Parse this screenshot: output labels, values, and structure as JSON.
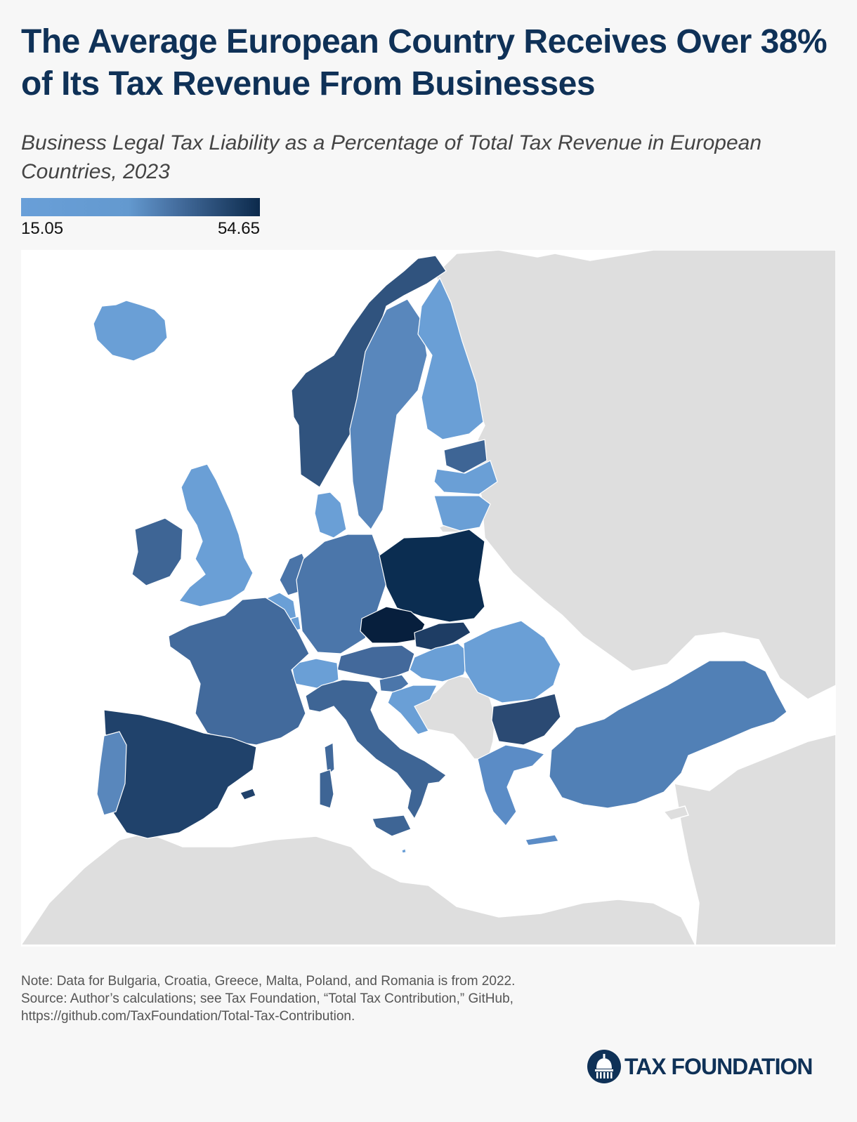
{
  "title": "The Average European Country Receives Over 38% of Its Tax Revenue From Businesses",
  "subtitle": "Business Legal Tax Liability as a Percentage of Total Tax Revenue in European Countries, 2023",
  "legend": {
    "min": "15.05",
    "max": "54.65",
    "color_low": "#699fd8",
    "color_high": "#0c2a4c"
  },
  "colors": {
    "title": "#0f3157",
    "background": "#f7f7f7",
    "sea": "#ffffff",
    "non_data_land": "#dedede"
  },
  "notes": {
    "note": "Note: Data for Bulgaria, Croatia, Greece, Malta, Poland, and Romania is from 2022.",
    "source_line1": "Source: Author’s calculations; see Tax Foundation, “Total Tax Contribution,” GitHub,",
    "source_line2": "https://github.com/TaxFoundation/Total-Tax-Contribution."
  },
  "brand": {
    "name": "TAX FOUNDATION",
    "logo_icon": "capitol-dome-icon"
  },
  "map_data": {
    "type": "choropleth",
    "region": "Europe",
    "scale": {
      "min": 15.05,
      "max": 54.65
    },
    "countries": [
      {
        "name": "Iceland",
        "fill": "#6a9fd6"
      },
      {
        "name": "Norway",
        "fill": "#30537e"
      },
      {
        "name": "Sweden",
        "fill": "#5987bc"
      },
      {
        "name": "Finland",
        "fill": "#6a9fd6"
      },
      {
        "name": "Estonia",
        "fill": "#3e6595"
      },
      {
        "name": "Latvia",
        "fill": "#6a9fd6"
      },
      {
        "name": "Lithuania",
        "fill": "#6a9fd6"
      },
      {
        "name": "Denmark",
        "fill": "#6a9fd6"
      },
      {
        "name": "United Kingdom",
        "fill": "#6a9fd6"
      },
      {
        "name": "Ireland",
        "fill": "#3e6595"
      },
      {
        "name": "Netherlands",
        "fill": "#4a74a8"
      },
      {
        "name": "Belgium",
        "fill": "#6a9fd6"
      },
      {
        "name": "Luxembourg",
        "fill": "#6a9fd6"
      },
      {
        "name": "Germany",
        "fill": "#4b76aa"
      },
      {
        "name": "Poland",
        "fill": "#0b2d51"
      },
      {
        "name": "Czech Republic",
        "fill": "#071f3d"
      },
      {
        "name": "Slovakia",
        "fill": "#1e3d64"
      },
      {
        "name": "Austria",
        "fill": "#43699b"
      },
      {
        "name": "Switzerland",
        "fill": "#6a9fd6"
      },
      {
        "name": "Hungary",
        "fill": "#6a9fd6"
      },
      {
        "name": "Slovenia",
        "fill": "#4b76aa"
      },
      {
        "name": "Croatia",
        "fill": "#6a9fd6"
      },
      {
        "name": "Romania",
        "fill": "#6a9fd6"
      },
      {
        "name": "Bulgaria",
        "fill": "#2b4a73"
      },
      {
        "name": "Greece",
        "fill": "#5b8cc6"
      },
      {
        "name": "Turkey",
        "fill": "#5180b6"
      },
      {
        "name": "France",
        "fill": "#426a9c"
      },
      {
        "name": "Spain",
        "fill": "#20426b"
      },
      {
        "name": "Portugal",
        "fill": "#5987bc"
      },
      {
        "name": "Italy",
        "fill": "#3e6595"
      },
      {
        "name": "Malta",
        "fill": "#6a9fd6"
      }
    ]
  }
}
